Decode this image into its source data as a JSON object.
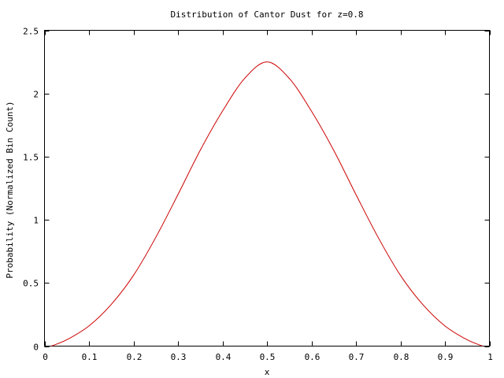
{
  "chart_data": {
    "type": "line",
    "title": "Distribution of Cantor Dust for z=0.8",
    "xlabel": "x",
    "ylabel": "Probability (Normalized Bin Count)",
    "xlim": [
      0,
      1
    ],
    "ylim": [
      0,
      2.5
    ],
    "grid": false,
    "legend": "none",
    "x_ticks": [
      "0",
      "0.1",
      "0.2",
      "0.3",
      "0.4",
      "0.5",
      "0.6",
      "0.7",
      "0.8",
      "0.9",
      "1"
    ],
    "y_ticks": [
      "0",
      "0.5",
      "1",
      "1.5",
      "2",
      "2.5"
    ],
    "x_tick_values": [
      0,
      0.1,
      0.2,
      0.3,
      0.4,
      0.5,
      0.6,
      0.7,
      0.8,
      0.9,
      1
    ],
    "y_tick_values": [
      0,
      0.5,
      1,
      1.5,
      2,
      2.5
    ],
    "series": [
      {
        "color": "#cc0000",
        "x": [
          0.015,
          0.05,
          0.1,
          0.15,
          0.2,
          0.25,
          0.3,
          0.35,
          0.4,
          0.45,
          0.5,
          0.55,
          0.6,
          0.65,
          0.7,
          0.75,
          0.8,
          0.85,
          0.9,
          0.95,
          0.985
        ],
        "y": [
          0.0,
          0.05,
          0.16,
          0.33,
          0.56,
          0.86,
          1.2,
          1.55,
          1.86,
          2.12,
          2.25,
          2.12,
          1.86,
          1.55,
          1.2,
          0.86,
          0.56,
          0.33,
          0.16,
          0.05,
          0.0
        ]
      }
    ]
  }
}
